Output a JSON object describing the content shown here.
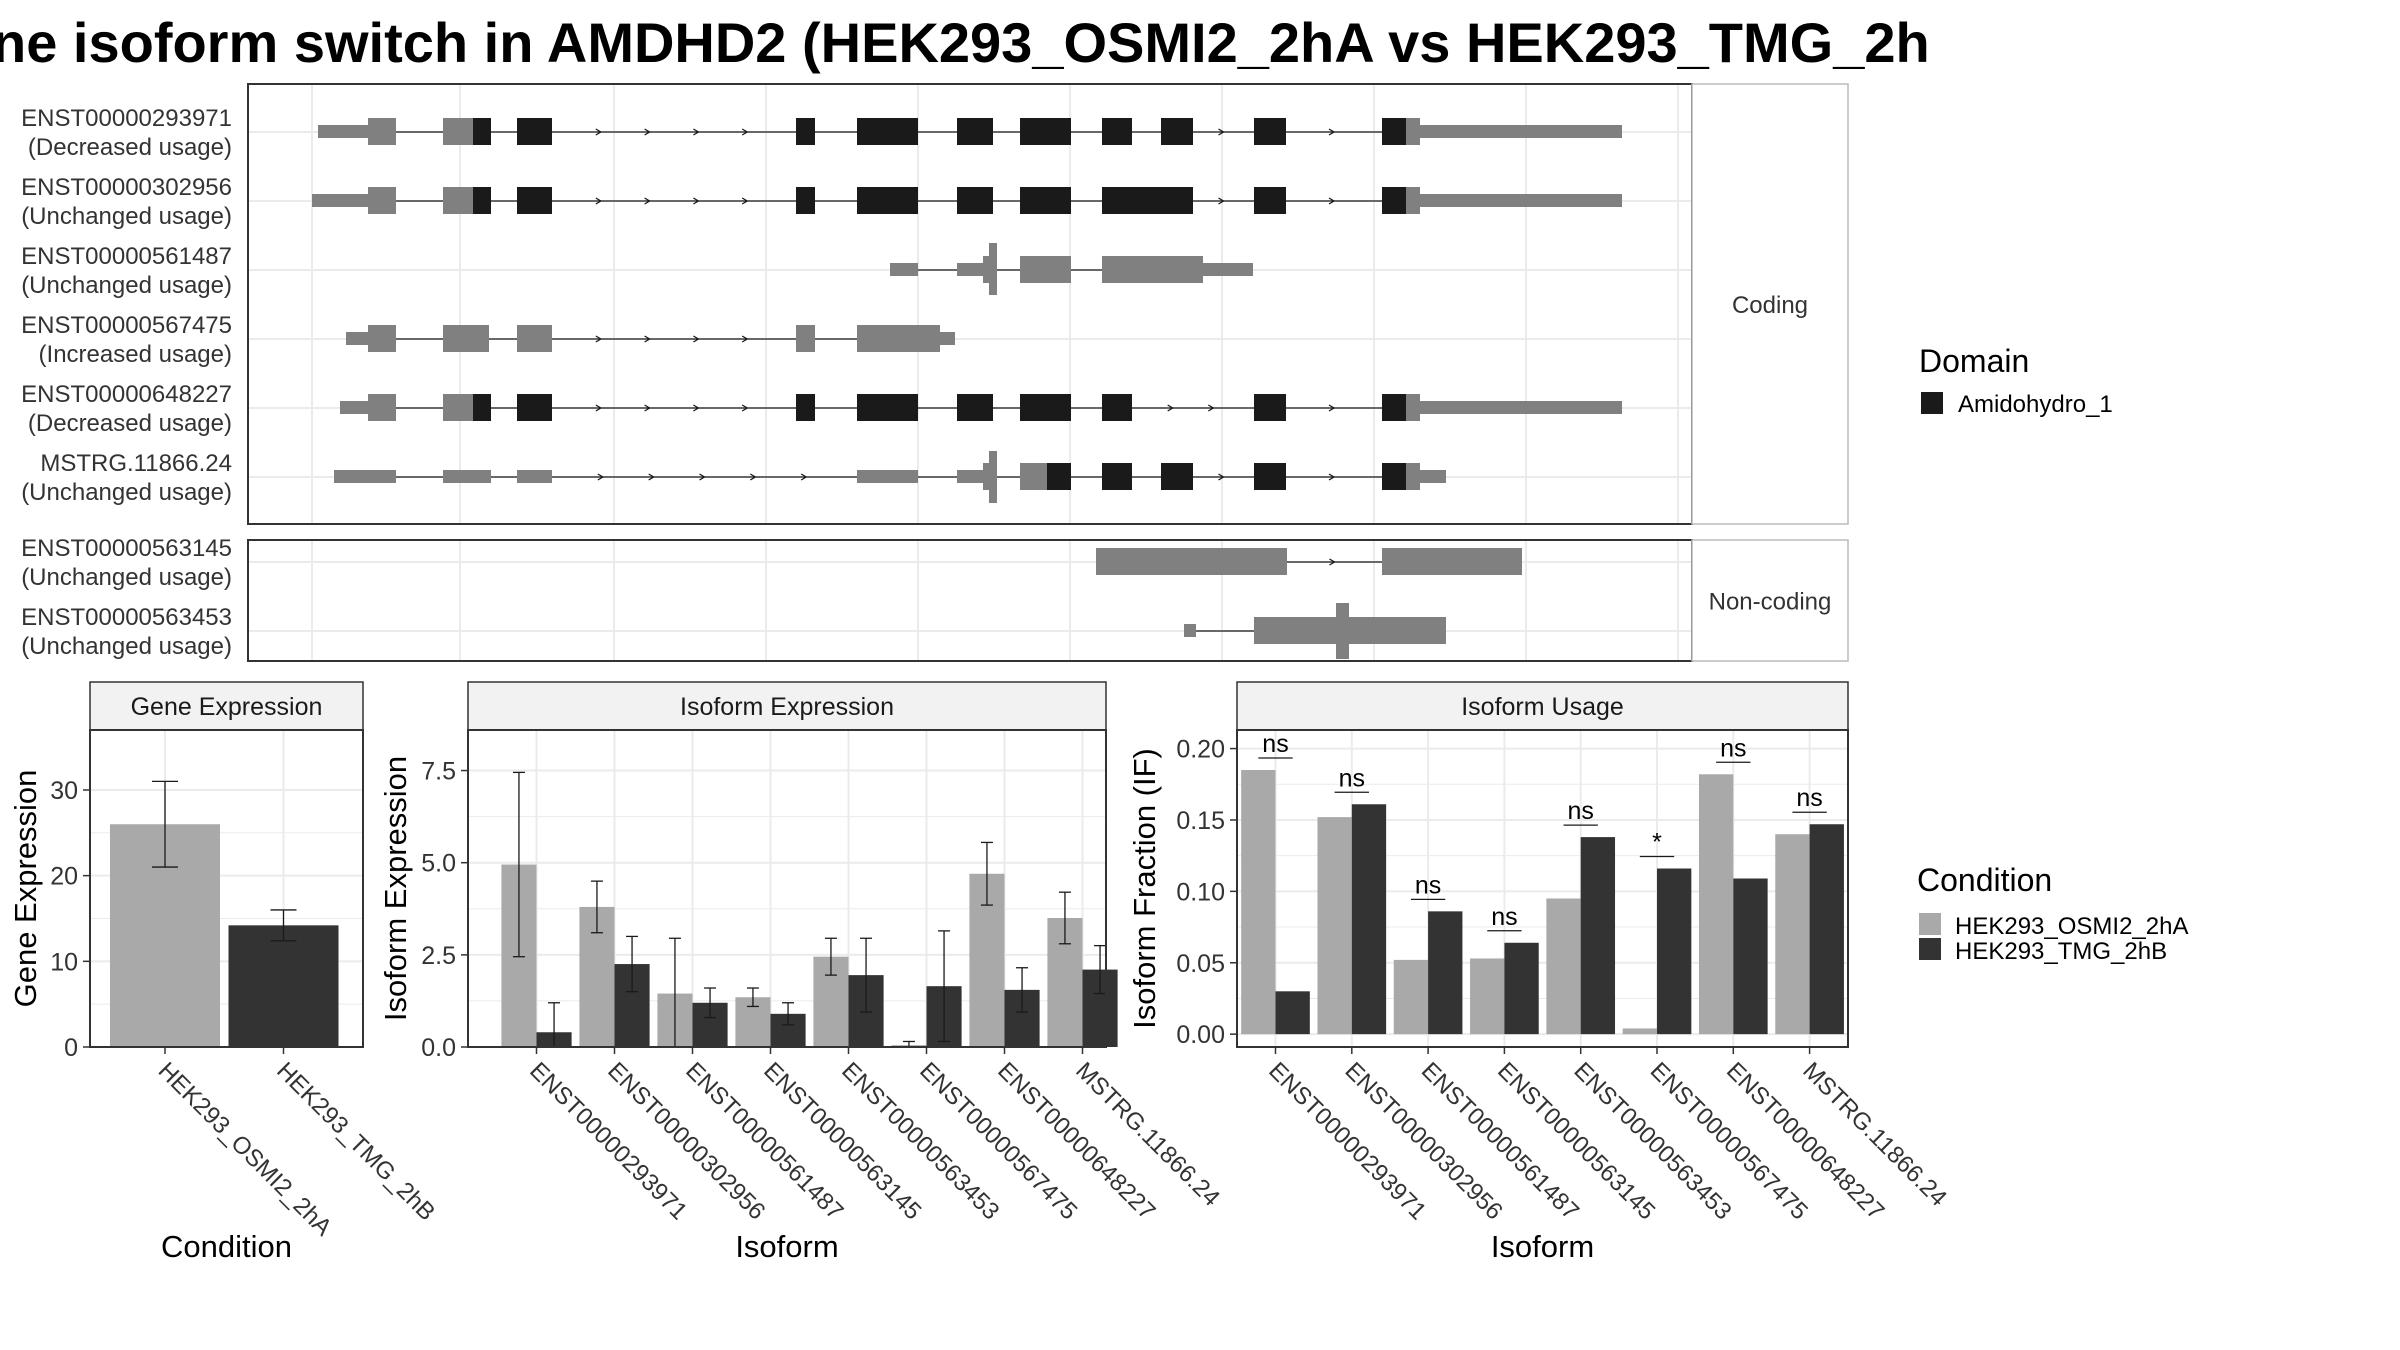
{
  "title": "ne isoform switch in AMDHD2 (HEK293_OSMI2_2hA vs HEK293_TMG_2h",
  "colors": {
    "domain": "#1a1a1a",
    "utr": "#808080",
    "cond_a": "#a9a9a9",
    "cond_b": "#333333",
    "strip": "#f2f2f2",
    "grid": "#ebebeb"
  },
  "legend_domain": {
    "title": "Domain",
    "items": [
      "Amidohydro_1"
    ]
  },
  "legend_condition": {
    "title": "Condition",
    "items": [
      "HEK293_OSMI2_2hA",
      "HEK293_TMG_2hB"
    ]
  },
  "chart_data": [
    {
      "type": "gene-structure",
      "panels": [
        {
          "label": "Coding",
          "transcripts": [
            {
              "id": "ENST00000293971",
              "usage": "(Decreased usage)"
            },
            {
              "id": "ENST00000302956",
              "usage": "(Unchanged usage)"
            },
            {
              "id": "ENST00000561487",
              "usage": "(Unchanged usage)"
            },
            {
              "id": "ENST00000567475",
              "usage": "(Increased usage)"
            },
            {
              "id": "ENST00000648227",
              "usage": "(Decreased usage)"
            },
            {
              "id": "MSTRG.11866.24",
              "usage": "(Unchanged usage)"
            }
          ]
        },
        {
          "label": "Non-coding",
          "transcripts": [
            {
              "id": "ENST00000563145",
              "usage": "(Unchanged usage)"
            },
            {
              "id": "ENST00000563453",
              "usage": "(Unchanged usage)"
            }
          ]
        }
      ]
    },
    {
      "type": "bar",
      "strip": "Gene Expression",
      "xlabel": "Condition",
      "ylabel": "Gene Expression",
      "ylim": [
        0,
        37
      ],
      "yticks": [
        0,
        10,
        20,
        30
      ],
      "categories": [
        "HEK293_OSMI2_2hA",
        "HEK293_TMG_2hB"
      ],
      "values": [
        26.0,
        14.2
      ],
      "errors": [
        [
          21.0,
          31.0
        ],
        [
          12.4,
          16.0
        ]
      ]
    },
    {
      "type": "bar",
      "strip": "Isoform Expression",
      "xlabel": "Isoform",
      "ylabel": "Isoform Expression",
      "ylim": [
        0,
        8.6
      ],
      "yticks": [
        "0.0",
        "2.5",
        "5.0",
        "7.5"
      ],
      "categories": [
        "ENST00000293971",
        "ENST00000302956",
        "ENST00000561487",
        "ENST00000563145",
        "ENST00000563453",
        "ENST00000567475",
        "ENST00000648227",
        "MSTRG.11866.24"
      ],
      "series": [
        {
          "name": "HEK293_OSMI2_2hA",
          "values": [
            4.95,
            3.8,
            1.45,
            1.35,
            2.45,
            0.05,
            4.7,
            3.5
          ],
          "errors": [
            [
              2.45,
              7.45
            ],
            [
              3.1,
              4.5
            ],
            [
              0.0,
              2.95
            ],
            [
              1.1,
              1.6
            ],
            [
              1.95,
              2.95
            ],
            [
              0.0,
              0.15
            ],
            [
              3.85,
              5.55
            ],
            [
              2.8,
              4.2
            ]
          ]
        },
        {
          "name": "HEK293_TMG_2hB",
          "values": [
            0.4,
            2.25,
            1.2,
            0.9,
            1.95,
            1.65,
            1.55,
            2.1
          ],
          "errors": [
            [
              0.0,
              1.2
            ],
            [
              1.5,
              3.0
            ],
            [
              0.8,
              1.6
            ],
            [
              0.6,
              1.2
            ],
            [
              0.95,
              2.95
            ],
            [
              0.15,
              3.15
            ],
            [
              0.95,
              2.15
            ],
            [
              1.45,
              2.75
            ]
          ]
        }
      ]
    },
    {
      "type": "bar",
      "strip": "Isoform Usage",
      "xlabel": "Isoform",
      "ylabel": "Isoform Fraction (IF)",
      "ylim": [
        -0.009,
        0.213
      ],
      "yticks": [
        "0.00",
        "0.05",
        "0.10",
        "0.15",
        "0.20"
      ],
      "categories": [
        "ENST00000293971",
        "ENST00000302956",
        "ENST00000561487",
        "ENST00000563145",
        "ENST00000563453",
        "ENST00000567475",
        "ENST00000648227",
        "MSTRG.11866.24"
      ],
      "series": [
        {
          "name": "HEK293_OSMI2_2hA",
          "values": [
            0.185,
            0.152,
            0.052,
            0.053,
            0.095,
            0.004,
            0.182,
            0.14
          ]
        },
        {
          "name": "HEK293_TMG_2hB",
          "values": [
            0.03,
            0.161,
            0.086,
            0.064,
            0.138,
            0.116,
            0.109,
            0.147
          ]
        }
      ],
      "significance": [
        "ns",
        "ns",
        "ns",
        "ns",
        "ns",
        "*",
        "ns",
        "ns"
      ]
    }
  ]
}
